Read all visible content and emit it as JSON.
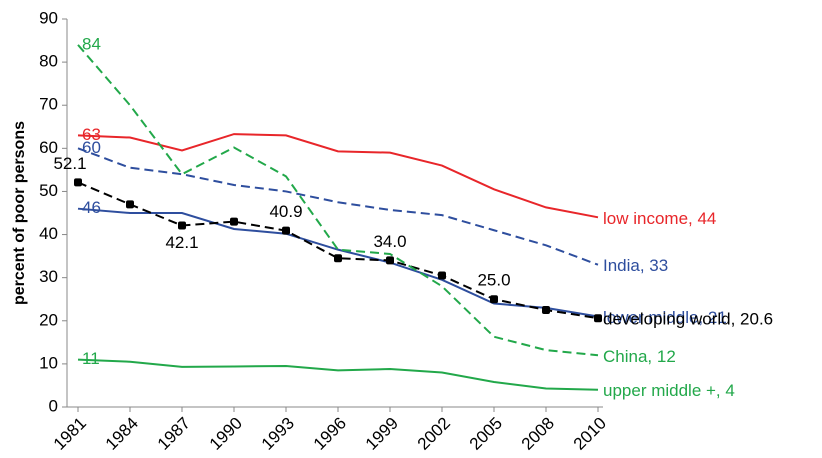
{
  "chart_data": {
    "type": "line",
    "y_label": "percent of poor persons",
    "categories": [
      "1981",
      "1984",
      "1987",
      "1990",
      "1993",
      "1996",
      "1999",
      "2002",
      "2005",
      "2008",
      "2010"
    ],
    "ylim": [
      0,
      90
    ],
    "yticks": [
      0,
      10,
      20,
      30,
      40,
      50,
      60,
      70,
      80,
      90
    ],
    "series": [
      {
        "name": "low income",
        "label": "low income, 44",
        "color": "#e8262a",
        "dash": false,
        "markers": false,
        "values": [
          63,
          62.5,
          59.5,
          63.3,
          63,
          59.3,
          59,
          56,
          50.5,
          46.3,
          44
        ],
        "value_labels": [
          "63",
          null,
          null,
          null,
          null,
          null,
          null,
          null,
          null,
          null,
          null
        ]
      },
      {
        "name": "India",
        "label": "India, 33",
        "color": "#2e4e9e",
        "dash": true,
        "markers": false,
        "values": [
          60,
          55.5,
          54,
          51.5,
          50,
          47.5,
          45.7,
          44.5,
          41,
          37.5,
          33
        ],
        "value_labels": [
          "60",
          null,
          null,
          null,
          null,
          null,
          null,
          null,
          null,
          null,
          null
        ]
      },
      {
        "name": "lower middle",
        "label": "lower middle, 21",
        "color": "#2e4e9e",
        "dash": false,
        "markers": false,
        "values": [
          46,
          45,
          45,
          41.3,
          40.2,
          36.5,
          33.5,
          29.5,
          24,
          23,
          21
        ],
        "value_labels": [
          "46",
          null,
          null,
          null,
          null,
          null,
          null,
          null,
          null,
          null,
          null
        ]
      },
      {
        "name": "developing world",
        "label": "developing world, 20.6",
        "color": "#000000",
        "dash": true,
        "markers": true,
        "values": [
          52.1,
          47,
          42.1,
          43,
          40.9,
          34.5,
          34.0,
          30.5,
          25.0,
          22.5,
          20.6
        ],
        "value_labels": [
          "52.1",
          null,
          "42.1",
          null,
          "40.9",
          null,
          "34.0",
          null,
          "25.0",
          null,
          null
        ]
      },
      {
        "name": "China",
        "label": "China, 12",
        "color": "#22a84a",
        "dash": true,
        "markers": false,
        "values": [
          84,
          70,
          54,
          60.2,
          53.5,
          36.5,
          35.5,
          28,
          16.3,
          13.2,
          12
        ],
        "value_labels": [
          "84",
          null,
          null,
          null,
          null,
          null,
          null,
          null,
          null,
          null,
          null
        ]
      },
      {
        "name": "upper middle +",
        "label": "upper middle +, 4",
        "color": "#22a84a",
        "dash": false,
        "markers": false,
        "values": [
          11,
          10.5,
          9.3,
          9.4,
          9.5,
          8.5,
          8.8,
          8,
          5.8,
          4.3,
          4
        ],
        "value_labels": [
          "11",
          null,
          null,
          null,
          null,
          null,
          null,
          null,
          null,
          null,
          null
        ]
      }
    ]
  }
}
